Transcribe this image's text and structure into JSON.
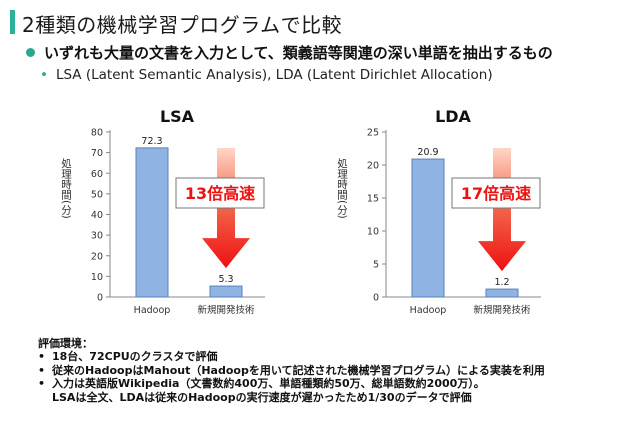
{
  "title": "2種類の機械学習プログラムで比較",
  "bullet_main": "いずれも大量の文書を入力として、類義語等関連の深い単語を抽出するもの",
  "bullet_sub": "LSA (Latent Semantic Analysis), LDA (Latent Dirichlet Allocation)",
  "colors": {
    "accent": "#27a88f",
    "bar": "#8fb4e3",
    "arrow": "#ee1111",
    "speedup_text": "#ee1111"
  },
  "chart_data": [
    {
      "type": "bar",
      "title": "LSA",
      "ylabel": "処理時間(分)",
      "categories": [
        "Hadoop",
        "新規開発技術"
      ],
      "values": [
        72.3,
        5.3
      ],
      "value_labels": [
        "72.3",
        "5.3"
      ],
      "ylim": [
        0,
        80
      ],
      "yticks": [
        "0",
        "10",
        "20",
        "30",
        "40",
        "50",
        "60",
        "70",
        "80"
      ],
      "annotation": "13倍高速"
    },
    {
      "type": "bar",
      "title": "LDA",
      "ylabel": "処理時間(分)",
      "categories": [
        "Hadoop",
        "新規開発技術"
      ],
      "values": [
        20.9,
        1.2
      ],
      "value_labels": [
        "20.9",
        "1.2"
      ],
      "ylim": [
        0,
        25
      ],
      "yticks": [
        "0",
        "5",
        "10",
        "15",
        "20",
        "25"
      ],
      "annotation": "17倍高速"
    }
  ],
  "env": {
    "heading": "評価環境：",
    "items": [
      "18台、72CPUのクラスタで評価",
      "従来のHadoopはMahout（Hadoopを用いて記述された機械学習プログラム）による実装を利用",
      "入力は英語版Wikipedia（文書数約400万、単語種類約50万、総単語数約2000万）。"
    ],
    "continuation": "LSAは全文、LDAは従来のHadoopの実行速度が遅かったため1/30のデータで評価"
  }
}
